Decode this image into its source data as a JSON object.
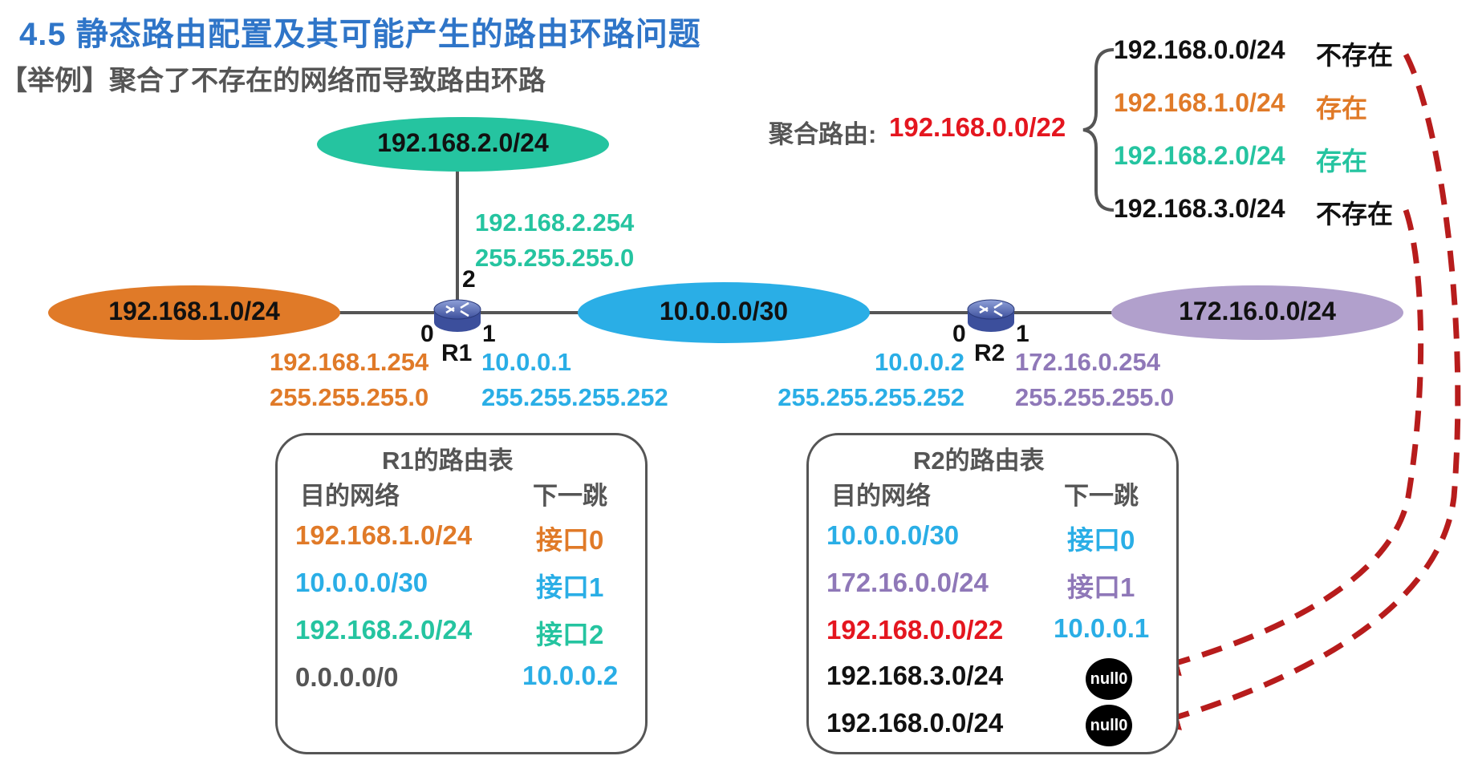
{
  "title": "4.5  静态路由配置及其可能产生的路由环路问题",
  "subtitle": "【举例】聚合了不存在的网络而导致路由环路",
  "colors": {
    "orange": "#e07a28",
    "teal": "#25c4a0",
    "blue": "#2aaee6",
    "purple": "#8f78b8",
    "red": "#e4161f",
    "gray": "#555555",
    "dark": "#111111",
    "arrow": "#b71c1c"
  },
  "networks": {
    "top": "192.168.2.0/24",
    "left": "192.168.1.0/24",
    "middle": "10.0.0.0/30",
    "right": "172.16.0.0/24"
  },
  "routers": {
    "r1": {
      "name": "R1",
      "icon": "router-icon",
      "port0": "0",
      "port1": "1",
      "port2": "2",
      "if2_ip": "192.168.2.254",
      "if2_mask": "255.255.255.0",
      "if0_ip": "192.168.1.254",
      "if0_mask": "255.255.255.0",
      "if1_ip": "10.0.0.1",
      "if1_mask": "255.255.255.252"
    },
    "r2": {
      "name": "R2",
      "icon": "router-icon",
      "port0": "0",
      "port1": "1",
      "if0_ip": "10.0.0.2",
      "if0_mask": "255.255.255.252",
      "if1_ip": "172.16.0.254",
      "if1_mask": "255.255.255.0"
    }
  },
  "r1_table": {
    "title": "R1的路由表",
    "col_dest": "目的网络",
    "col_next": "下一跳",
    "rows": [
      {
        "dest": "192.168.1.0/24",
        "next": "接口0"
      },
      {
        "dest": "10.0.0.0/30",
        "next": "接口1"
      },
      {
        "dest": "192.168.2.0/24",
        "next": "接口2"
      },
      {
        "dest": "0.0.0.0/0",
        "next": "10.0.0.2"
      }
    ]
  },
  "r2_table": {
    "title": "R2的路由表",
    "col_dest": "目的网络",
    "col_next": "下一跳",
    "rows": [
      {
        "dest": "10.0.0.0/30",
        "next": "接口0"
      },
      {
        "dest": "172.16.0.0/24",
        "next": "接口1"
      },
      {
        "dest": "192.168.0.0/22",
        "next": "10.0.0.1"
      },
      {
        "dest": "192.168.3.0/24",
        "next": "null0"
      },
      {
        "dest": "192.168.0.0/24",
        "next": "null0"
      }
    ]
  },
  "aggregate": {
    "label": "聚合路由:",
    "value": "192.168.0.0/22",
    "items": [
      {
        "net": "192.168.0.0/24",
        "status": "不存在"
      },
      {
        "net": "192.168.1.0/24",
        "status": "存在"
      },
      {
        "net": "192.168.2.0/24",
        "status": "存在"
      },
      {
        "net": "192.168.3.0/24",
        "status": "不存在"
      }
    ]
  }
}
